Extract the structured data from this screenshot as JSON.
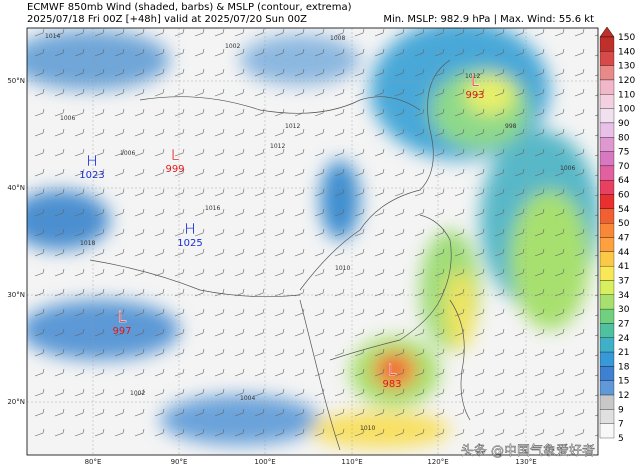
{
  "header": {
    "title": "ECMWF 850mb Wind (shaded, barbs) & MSLP (contour, extrema)",
    "subtitle": "2025/07/18 Fri 00Z [+48h] valid at 2025/07/20 Sun 00Z",
    "stats": "Min. MSLP: 982.9 hPa | Max. Wind: 55.6 kt"
  },
  "colorbar": {
    "labels": [
      "150",
      "140",
      "130",
      "120",
      "110",
      "100",
      "90",
      "80",
      "75",
      "70",
      "64",
      "60",
      "54",
      "50",
      "47",
      "44",
      "41",
      "37",
      "34",
      "30",
      "27",
      "24",
      "21",
      "18",
      "15",
      "12",
      "9",
      "7",
      "5"
    ],
    "colors": [
      "#c0302a",
      "#d84a4a",
      "#e88a8a",
      "#f0b8c8",
      "#f4d0e0",
      "#f0e0f0",
      "#e8c0e8",
      "#e098d0",
      "#d878c0",
      "#e060a0",
      "#e84060",
      "#e83030",
      "#f06030",
      "#f88838",
      "#fca040",
      "#fcc848",
      "#f8e858",
      "#d8f060",
      "#a8e070",
      "#70d080",
      "#50c0a0",
      "#40b0c8",
      "#3898d8",
      "#4080d0",
      "#6098d8",
      "#c8c8c8",
      "#e0e0e0",
      "#f8f8f8"
    ]
  },
  "latitudes": [
    "50°N",
    "40°N",
    "30°N",
    "20°N"
  ],
  "longitudes": [
    "80°E",
    "90°E",
    "100°E",
    "110°E",
    "120°E",
    "130°E"
  ],
  "centers": [
    {
      "symbol": "H",
      "value": "1023"
    },
    {
      "symbol": "L",
      "value": "999"
    },
    {
      "symbol": "H",
      "value": "1025"
    },
    {
      "symbol": "L",
      "value": "997"
    },
    {
      "symbol": "L",
      "value": "993"
    },
    {
      "symbol": "L",
      "value": "983"
    }
  ],
  "isobar_labels": [
    "1014",
    "1002",
    "1008",
    "1012",
    "1006",
    "1016",
    "1012",
    "1018",
    "1010",
    "1004",
    "1002",
    "1006",
    "1012",
    "998",
    "1006",
    "1010"
  ],
  "watermark": "头条 @中国气象爱好者"
}
